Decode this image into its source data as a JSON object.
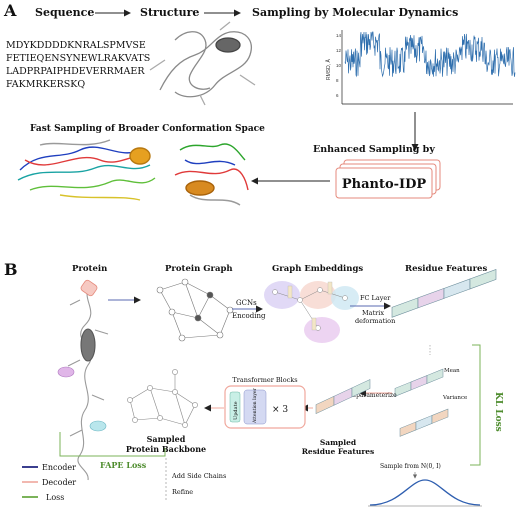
{
  "panel_a": {
    "letter": "A",
    "sequence_title": "Sequence",
    "structure_title": "Structure",
    "md_title": "Sampling by Molecular Dynamics",
    "sequence_lines": [
      "MDYKDDDDKNRALSPMVSE",
      "FETIEQENSYNEWLRAKVATS",
      "LADPRPAIPHDEVERRMAER",
      "FAKMRKERSKQ"
    ],
    "md_ylabel": "RMSD, Å",
    "md_yticks": [
      "14",
      "12",
      "10",
      "8",
      "6"
    ],
    "fast_title": "Fast Sampling of Broader Conformation Space",
    "enhanced_title": "Enhanced Sampling by",
    "method_name": "Phanto-IDP"
  },
  "panel_b": {
    "letter": "B",
    "protein_title": "Protein",
    "graph_title": "Protein Graph",
    "embed_title": "Graph Embeddings",
    "residue_title": "Residue Features",
    "gcn_label": "GCNs",
    "encoding_label": "Encoding",
    "fc_label": "FC Layer",
    "matrix_label_1": "Matrix",
    "matrix_label_2": "deformation",
    "mean_label": "Mean",
    "variance_label": "Variance",
    "reparam_label": "Reparameterize",
    "kl_label": "KL Loss",
    "transformer_title": "Transformer Blocks",
    "update_label": "Update",
    "attention_label": "Attention layer",
    "times_label": "× 3",
    "sampled_backbone_1": "Sampled",
    "sampled_backbone_2": "Protein Backbone",
    "sampled_features_1": "Sampled",
    "sampled_features_2": "Residue Features",
    "fape_label": "FAPE Loss",
    "side_chain_label": "Add Side Chains",
    "refine_label": "Refine",
    "sample_label": "Sample from N(0, I)",
    "legend": [
      {
        "label": "Encoder",
        "color": "#3b3f8f"
      },
      {
        "label": "Decoder",
        "color": "#f2b8b0"
      },
      {
        "label": "Loss",
        "color": "#7bb35a"
      }
    ]
  }
}
